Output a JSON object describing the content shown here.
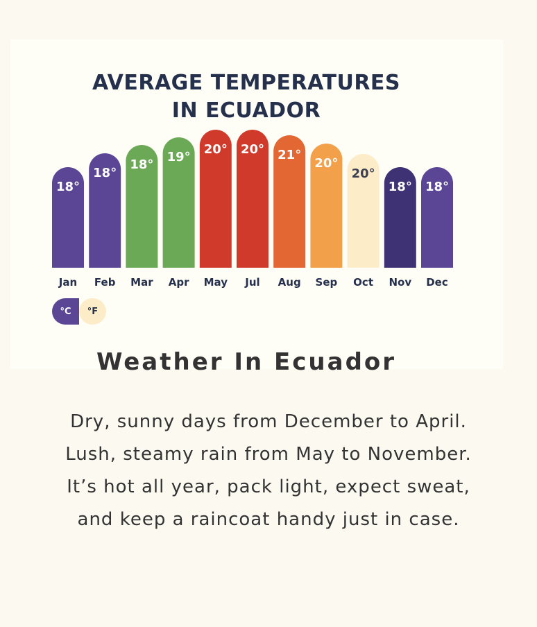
{
  "chart_data": {
    "type": "bar",
    "title_lines": [
      "AVERAGE TEMPERATURES",
      "IN ECUADOR"
    ],
    "categories": [
      "Jan",
      "Feb",
      "Mar",
      "Apr",
      "May",
      "Jul",
      "Aug",
      "Sep",
      "Oct",
      "Nov",
      "Dec"
    ],
    "values": [
      18,
      18,
      18,
      19,
      20,
      20,
      21,
      20,
      20,
      18,
      18
    ],
    "value_labels": [
      "18°",
      "18°",
      "18°",
      "19°",
      "20°",
      "20°",
      "21°",
      "20°",
      "20°",
      "18°",
      "18°"
    ],
    "bar_colors": [
      "#5b4696",
      "#5b4696",
      "#6ca957",
      "#6ca957",
      "#d03a2b",
      "#d03a2b",
      "#e36733",
      "#f3a04a",
      "#fdecc8",
      "#3f3274",
      "#5b4696"
    ],
    "label_colors": [
      "#ffffff",
      "#ffffff",
      "#ffffff",
      "#ffffff",
      "#ffffff",
      "#ffffff",
      "#ffffff",
      "#ffffff",
      "#3b3f52",
      "#ffffff",
      "#ffffff"
    ],
    "grid": false,
    "legend": "none"
  },
  "unit_toggle": {
    "celsius_label": "°C",
    "fahrenheit_label": "°F",
    "selected": "°C"
  },
  "section": {
    "heading": "Weather In Ecuador",
    "lines": [
      "Dry, sunny days from December to April.",
      "Lush, steamy rain from May to November.",
      "It’s hot all year, pack light, expect sweat,",
      "and keep a raincoat handy just in case."
    ]
  }
}
